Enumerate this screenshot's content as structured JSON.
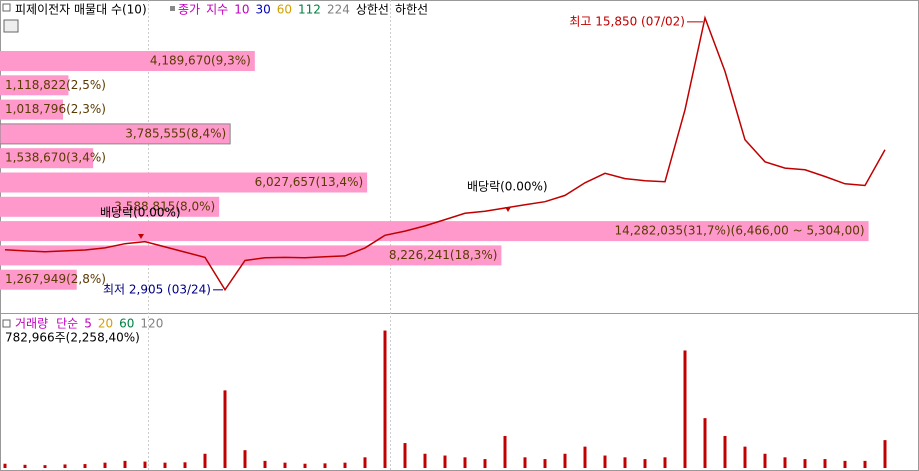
{
  "chart_data": [
    {
      "type": "line",
      "title": "피제이전자 매물대 수(10)",
      "legend": [
        "종가",
        "지수",
        "10",
        "30",
        "60",
        "112",
        "224",
        "상한선",
        "하한선"
      ],
      "legend_colors": [
        "#c000c0",
        "#c000c0",
        "#c000c0",
        "#0000c0",
        "#d4a000",
        "#008040",
        "#808080",
        "#000000",
        "#000000"
      ],
      "values": [
        4809,
        4760,
        4714,
        4760,
        4800,
        4900,
        5100,
        5200,
        4950,
        4700,
        4450,
        2905,
        4300,
        4428,
        4450,
        4430,
        4480,
        4520,
        4900,
        5500,
        5700,
        5950,
        6250,
        6550,
        6650,
        6800,
        6950,
        7100,
        7400,
        8000,
        8450,
        8200,
        8100,
        8050,
        11473,
        15850,
        13300,
        10045,
        9000,
        8700,
        8617,
        8300,
        7950,
        7870,
        9569
      ],
      "color": "#c00000",
      "ylim": [
        1850,
        16700
      ],
      "high_label": "최고 15,850 (07/02)",
      "low_label": "최저 2,905 (03/24)",
      "ex_dividend_labels": [
        "배당락(0.00%)",
        "배당락(0.00%)"
      ],
      "volume_profile": {
        "color": "#ff99cc",
        "values": [
          9.3,
          2.5,
          2.3,
          8.4,
          3.4,
          13.4,
          8.0,
          31.7,
          18.3,
          2.8
        ],
        "value_labels": [
          "4,189,670(9,3%)",
          "1,118,822(2,5%)",
          "1,018,796(2,3%)",
          "3,785,555(8,4%)",
          "1,538,670(3,4%)",
          "6,027,657(13,4%)",
          "3,588,815(8,0%)",
          "14,282,035(31,7%)(6,466,00 ~ 5,304,00)",
          "8,226,241(18,3%)",
          "1,267,949(2,8%)"
        ]
      }
    },
    {
      "type": "bar",
      "title": "거래량",
      "legend": [
        "단순",
        "5",
        "20",
        "60",
        "120"
      ],
      "legend_colors": [
        "#c000c0",
        "#c000c0",
        "#d4a000",
        "#008040",
        "#808080"
      ],
      "last_label": "782,966주(2,258,40%)",
      "values": [
        120000,
        90000,
        80000,
        100000,
        110000,
        150000,
        200000,
        180000,
        150000,
        160000,
        400000,
        2180000,
        500000,
        200000,
        150000,
        120000,
        130000,
        150000,
        300000,
        3860000,
        700000,
        400000,
        350000,
        300000,
        250000,
        900000,
        300000,
        250000,
        400000,
        600000,
        350000,
        300000,
        250000,
        300000,
        3300000,
        1400000,
        900000,
        600000,
        400000,
        300000,
        250000,
        250000,
        200000,
        200000,
        782966
      ],
      "color": "#c00000",
      "ylim": [
        0,
        4100000
      ]
    }
  ]
}
